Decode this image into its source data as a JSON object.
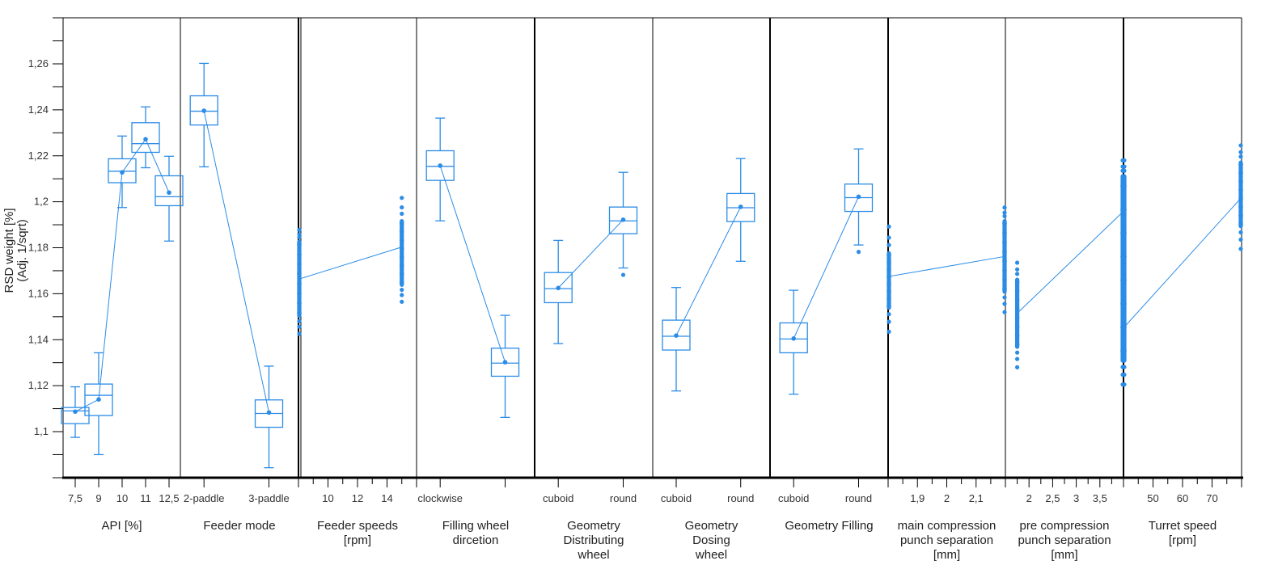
{
  "chart_data": {
    "type": "box",
    "title": "",
    "ylabel": [
      "RSD weight [%]",
      "(Adj. 1/sqrt)"
    ],
    "ylim": [
      1.08,
      1.28
    ],
    "yticks": [
      1.1,
      1.12,
      1.14,
      1.16,
      1.18,
      1.2,
      1.22,
      1.24,
      1.26
    ],
    "ytick_labels": [
      "1,1",
      "1,12",
      "1,14",
      "1,16",
      "1,18",
      "1,2",
      "1,22",
      "1,24",
      "1,26"
    ],
    "series_color": "#2b8ce6",
    "axis_color": "#000000",
    "panels": [
      {
        "name": "API [%]",
        "label_lines": [
          "API [%]"
        ],
        "kind": "box",
        "categories": [
          "7,5",
          "9",
          "10",
          "11",
          "12,5"
        ],
        "boxes": [
          {
            "whisker_low": 1.0975,
            "q1": 1.1035,
            "median": 1.109,
            "q3": 1.1105,
            "whisker_high": 1.1195,
            "mean": 1.1087,
            "outliers": []
          },
          {
            "whisker_low": 1.09,
            "q1": 1.107,
            "median": 1.1158,
            "q3": 1.1207,
            "whisker_high": 1.1343,
            "mean": 1.114,
            "outliers": []
          },
          {
            "whisker_low": 1.1975,
            "q1": 1.2083,
            "median": 1.2133,
            "q3": 1.2187,
            "whisker_high": 1.2286,
            "mean": 1.2128,
            "outliers": []
          },
          {
            "whisker_low": 1.2148,
            "q1": 1.2215,
            "median": 1.2253,
            "q3": 1.2344,
            "whisker_high": 1.2413,
            "mean": 1.2272,
            "outliers": []
          },
          {
            "whisker_low": 1.1829,
            "q1": 1.1983,
            "median": 1.2022,
            "q3": 1.2113,
            "whisker_high": 1.2198,
            "mean": 1.204,
            "outliers": []
          }
        ]
      },
      {
        "name": "Feeder mode",
        "label_lines": [
          "Feeder mode"
        ],
        "kind": "box",
        "categories": [
          "2-paddle",
          "3-paddle"
        ],
        "boxes": [
          {
            "whisker_low": 1.2152,
            "q1": 1.2334,
            "median": 1.2394,
            "q3": 1.2461,
            "whisker_high": 1.2602,
            "mean": 1.2396,
            "outliers": []
          },
          {
            "whisker_low": 1.0843,
            "q1": 1.1019,
            "median": 1.1079,
            "q3": 1.1138,
            "whisker_high": 1.1285,
            "mean": 1.1083,
            "outliers": []
          }
        ]
      },
      {
        "name": "Feeder speeds [rpm]",
        "label_lines": [
          "Feeder speeds",
          "[rpm]"
        ],
        "kind": "scatter",
        "x_range": [
          8,
          16
        ],
        "tick_values": [
          8,
          9,
          10,
          11,
          12,
          13,
          14,
          15,
          16
        ],
        "tick_labels": [
          {
            "value": 10,
            "label": "10"
          },
          {
            "value": 12,
            "label": "12"
          },
          {
            "value": 14,
            "label": "14"
          }
        ],
        "groups": [
          {
            "x": 8,
            "ymin": 1.1425,
            "ymax": 1.1878,
            "mean": 1.1664,
            "dense_low": 1.1495,
            "dense_high": 1.1835
          },
          {
            "x": 15,
            "ymin": 1.1565,
            "ymax": 1.2017,
            "mean": 1.1803,
            "dense_low": 1.163,
            "dense_high": 1.1925
          }
        ]
      },
      {
        "name": "Filling wheel dircetion",
        "label_lines": [
          "Filling wheel",
          "dircetion"
        ],
        "kind": "box",
        "categories": [
          "clockwise",
          ""
        ],
        "boxes": [
          {
            "whisker_low": 1.1917,
            "q1": 1.2093,
            "median": 1.2154,
            "q3": 1.2222,
            "whisker_high": 1.2364,
            "mean": 1.2157,
            "outliers": []
          },
          {
            "whisker_low": 1.1062,
            "q1": 1.1241,
            "median": 1.1298,
            "q3": 1.1363,
            "whisker_high": 1.1506,
            "mean": 1.1302,
            "outliers": []
          }
        ]
      },
      {
        "name": "Geometry Distributing wheel",
        "label_lines": [
          "Geometry",
          "Distributing",
          "wheel"
        ],
        "kind": "box",
        "categories": [
          "cuboid",
          "round"
        ],
        "boxes": [
          {
            "whisker_low": 1.1383,
            "q1": 1.1561,
            "median": 1.1622,
            "q3": 1.1692,
            "whisker_high": 1.1832,
            "mean": 1.1625,
            "outliers": []
          },
          {
            "whisker_low": 1.1712,
            "q1": 1.1861,
            "median": 1.1917,
            "q3": 1.1977,
            "whisker_high": 1.2128,
            "mean": 1.1922,
            "outliers": [
              1.1682
            ]
          }
        ]
      },
      {
        "name": "Geometry Dosing wheel",
        "label_lines": [
          "Geometry",
          "Dosing",
          "wheel"
        ],
        "kind": "box",
        "categories": [
          "cuboid",
          "round"
        ],
        "boxes": [
          {
            "whisker_low": 1.1177,
            "q1": 1.1355,
            "median": 1.1415,
            "q3": 1.1485,
            "whisker_high": 1.1627,
            "mean": 1.1418,
            "outliers": []
          },
          {
            "whisker_low": 1.1741,
            "q1": 1.1914,
            "median": 1.1974,
            "q3": 1.2036,
            "whisker_high": 1.2188,
            "mean": 1.1978,
            "outliers": []
          }
        ]
      },
      {
        "name": "Geometry Filling",
        "label_lines": [
          "Geometry Filling"
        ],
        "kind": "box",
        "categories": [
          "cuboid",
          "round"
        ],
        "boxes": [
          {
            "whisker_low": 1.1163,
            "q1": 1.1343,
            "median": 1.1403,
            "q3": 1.1473,
            "whisker_high": 1.1615,
            "mean": 1.1405,
            "outliers": []
          },
          {
            "whisker_low": 1.1812,
            "q1": 1.1958,
            "median": 1.2018,
            "q3": 1.2077,
            "whisker_high": 1.223,
            "mean": 1.2022,
            "outliers": [
              1.1782
            ]
          }
        ]
      },
      {
        "name": "main compression punch separation [mm]",
        "label_lines": [
          "main compression",
          "punch separation",
          "[mm]"
        ],
        "kind": "scatter",
        "x_range": [
          1.8,
          2.2
        ],
        "tick_values": [
          1.8,
          1.85,
          1.9,
          1.95,
          2.0,
          2.05,
          2.1,
          2.15,
          2.2
        ],
        "tick_labels": [
          {
            "value": 1.9,
            "label": "1,9"
          },
          {
            "value": 2.0,
            "label": "2"
          },
          {
            "value": 2.1,
            "label": "2,1"
          }
        ],
        "groups": [
          {
            "x": 1.8,
            "ymin": 1.1435,
            "ymax": 1.1892,
            "mean": 1.1675,
            "dense_low": 1.153,
            "dense_high": 1.1785
          },
          {
            "x": 2.2,
            "ymin": 1.152,
            "ymax": 1.1975,
            "mean": 1.1762,
            "dense_low": 1.16,
            "dense_high": 1.1925
          }
        ]
      },
      {
        "name": "pre compression punch separation [mm]",
        "label_lines": [
          "pre compression",
          "punch separation",
          "[mm]"
        ],
        "kind": "scatter",
        "x_range": [
          1.5,
          4.0
        ],
        "tick_values": [
          1.5,
          1.75,
          2.0,
          2.25,
          2.5,
          2.75,
          3.0,
          3.25,
          3.5,
          3.75,
          4.0
        ],
        "tick_labels": [
          {
            "value": 2.0,
            "label": "2"
          },
          {
            "value": 2.5,
            "label": "2,5"
          },
          {
            "value": 3.0,
            "label": "3"
          },
          {
            "value": 3.5,
            "label": "3,5"
          }
        ],
        "groups": [
          {
            "x": 1.75,
            "ymin": 1.128,
            "ymax": 1.1735,
            "mean": 1.1515,
            "dense_low": 1.136,
            "dense_high": 1.167
          },
          {
            "x": 4.0,
            "ymin": 1.1205,
            "ymax": 1.218,
            "mean": 1.1955,
            "dense_low": 1.13,
            "dense_high": 1.212
          }
        ]
      },
      {
        "name": "Turret speed [rpm]",
        "label_lines": [
          "Turret speed",
          "[rpm]"
        ],
        "kind": "scatter",
        "x_range": [
          40,
          80
        ],
        "tick_values": [
          40,
          45,
          50,
          55,
          60,
          65,
          70,
          75,
          80
        ],
        "tick_labels": [
          {
            "value": 50,
            "label": "50"
          },
          {
            "value": 60,
            "label": "60"
          },
          {
            "value": 70,
            "label": "70"
          }
        ],
        "groups": [
          {
            "x": 40,
            "ymin": 1.1205,
            "ymax": 1.218,
            "mean": 1.1455,
            "dense_low": 1.13,
            "dense_high": 1.212
          },
          {
            "x": 80,
            "ymin": 1.1795,
            "ymax": 1.2245,
            "mean": 1.2015,
            "dense_low": 1.1885,
            "dense_high": 1.218
          }
        ]
      }
    ]
  }
}
